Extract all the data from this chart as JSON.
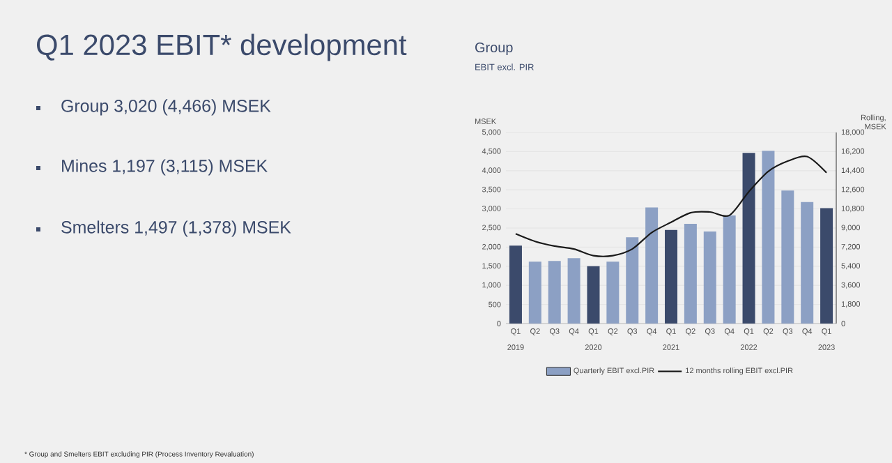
{
  "chart_data": {
    "type": "bar",
    "title": "Q1 2023 EBIT* development",
    "subtitle": "Group",
    "ylabel": "MSEK",
    "y2label": "Rolling, MSEK",
    "categories": [
      "Q1",
      "Q2",
      "Q3",
      "Q4",
      "Q1",
      "Q2",
      "Q3",
      "Q4",
      "Q1",
      "Q2",
      "Q3",
      "Q4",
      "Q1",
      "Q2",
      "Q3",
      "Q4",
      "Q1"
    ],
    "series": [
      {
        "name": "Quarterly EBIT excl.PIR",
        "color": "#8ca0c4",
        "colors": [
          "#3b4a6b",
          "#8ca0c4",
          "#8ca0c4",
          "#8ca0c4",
          "#3b4a6b",
          "#8ca0c4",
          "#8ca0c4",
          "#8ca0c4",
          "#3b4a6b",
          "#8ca0c4",
          "#8ca0c4",
          "#8ca0c4",
          "#3b4a6b",
          "#8ca0c4",
          "#8ca0c4",
          "#8ca0c4",
          "#3b4a6b"
        ],
        "values": [
          2040,
          1620,
          1640,
          1710,
          1500,
          1620,
          2260,
          3040,
          2450,
          2610,
          2410,
          2830,
          4466,
          4520,
          3480,
          3180,
          3020
        ]
      },
      {
        "name": "12 months rolling EBIT excl.PIR",
        "type": "line",
        "axis": "y2",
        "color": "#1a1a1a",
        "values": [
          8460,
          7740,
          7300,
          7020,
          6400,
          6400,
          7020,
          8570,
          9540,
          10440,
          10510,
          10190,
          12420,
          14330,
          15300,
          15730,
          14200
        ]
      }
    ],
    "ylim": [
      0,
      5000
    ],
    "yticks": [
      0,
      {
        "value": 500,
        "label": "500"
      },
      {
        "value": 1000,
        "label": "1,000"
      },
      {
        "value": 1500,
        "label": "1,500"
      },
      {
        "value": 2000,
        "label": "2,000"
      },
      {
        "value": 2500,
        "label": "2,500"
      },
      {
        "value": 3000,
        "label": "3,000"
      },
      {
        "value": 3500,
        "label": "3,500"
      },
      {
        "value": 4000,
        "label": "4,000"
      },
      {
        "value": 4500,
        "label": "4,500"
      },
      {
        "value": 5000,
        "label": "5,000"
      }
    ],
    "y2lim": [
      0,
      18000
    ],
    "y2ticks": [
      0,
      {
        "value": 1800,
        "label": "1,800"
      },
      {
        "value": 3600,
        "label": "3,600"
      },
      {
        "value": 5400,
        "label": "5,400"
      },
      {
        "value": 7200,
        "label": "7,200"
      },
      {
        "value": 9000,
        "label": "9,000"
      },
      {
        "value": 10800,
        "label": "10,800"
      },
      {
        "value": 12600,
        "label": "12,600"
      },
      {
        "value": 14400,
        "label": "14,400"
      },
      {
        "value": 16200,
        "label": "16,200"
      },
      {
        "value": 18000,
        "label": "18,000"
      }
    ],
    "grid": "y",
    "legend": "bottom",
    "annotations": [
      "EBIT excl. PIR",
      "Group 3,020 (4,466) MSEK",
      "Mines 1,197 (3,115) MSEK",
      "Smelters 1,497 (1,378) MSEK",
      "* Group and Smelters EBIT excluding PIR (Process Inventory Revaluation)",
      "2019",
      "2020",
      "2021",
      "2022",
      "2023"
    ]
  }
}
